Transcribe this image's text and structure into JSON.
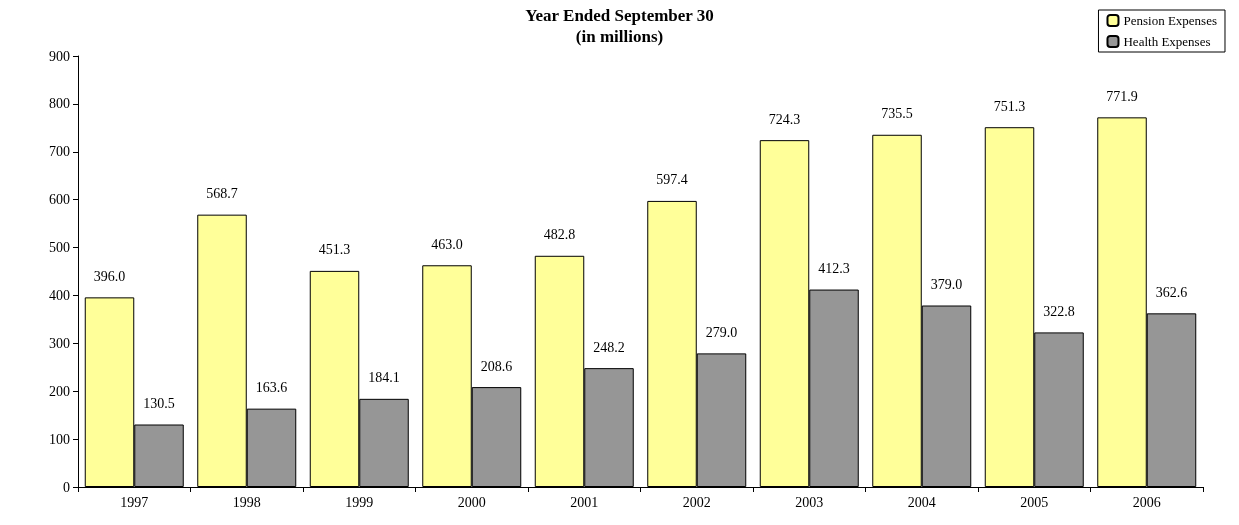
{
  "chart_data": {
    "type": "bar",
    "title": "Year Ended September 30",
    "subtitle": "(in millions)",
    "categories": [
      "1997",
      "1998",
      "1999",
      "2000",
      "2001",
      "2002",
      "2003",
      "2004",
      "2005",
      "2006"
    ],
    "series": [
      {
        "name": "Pension Expenses",
        "color": "#ffff99",
        "values": [
          396.0,
          568.7,
          451.3,
          463.0,
          482.8,
          597.4,
          724.3,
          735.5,
          751.3,
          771.9
        ],
        "value_labels": [
          "396.0",
          "568.7",
          "451.3",
          "463.0",
          "482.8",
          "597.4",
          "724.3",
          "735.5",
          "751.3",
          "771.9"
        ]
      },
      {
        "name": "Health Expenses",
        "color": "#969696",
        "values": [
          130.5,
          163.6,
          184.1,
          208.6,
          248.2,
          279.0,
          412.3,
          379.0,
          322.8,
          362.6
        ],
        "value_labels": [
          "130.5",
          "163.6",
          "184.1",
          "208.6",
          "248.2",
          "279.0",
          "412.3",
          "379.0",
          "322.8",
          "362.6"
        ]
      }
    ],
    "ylim": [
      0,
      900
    ],
    "yticks": [
      0,
      100,
      200,
      300,
      400,
      500,
      600,
      700,
      800,
      900
    ],
    "grid": false,
    "legend": "top right"
  }
}
